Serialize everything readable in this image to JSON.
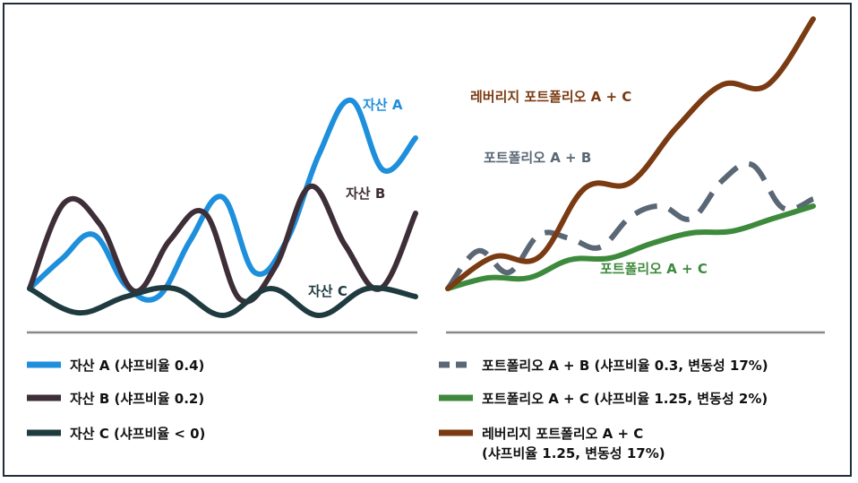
{
  "colors": {
    "asset_a": "#1e8fdc",
    "asset_b": "#3e2e38",
    "asset_c": "#1f3b40",
    "portfolio_ab": "#5a6775",
    "portfolio_ac": "#3d8a3d",
    "leveraged_ac": "#7a3a12",
    "baseline": "#888888",
    "frame": "#1f2d3d"
  },
  "chart_data": [
    {
      "type": "line",
      "title": "",
      "grid": false,
      "series": [
        {
          "name": "자산 A",
          "key": "a",
          "color_key": "asset_a",
          "dashed": false,
          "values": [
            0.0,
            0.55,
            1.0,
            0.05,
            -0.15,
            0.9,
            1.7,
            0.3,
            0.9,
            2.5,
            3.5,
            2.2,
            2.8
          ]
        },
        {
          "name": "자산 B",
          "key": "b",
          "color_key": "asset_b",
          "dashed": false,
          "values": [
            0.0,
            1.6,
            1.2,
            -0.05,
            0.9,
            1.4,
            -0.2,
            0.4,
            1.9,
            0.8,
            0.0,
            1.4
          ]
        },
        {
          "name": "자산 C",
          "key": "c",
          "color_key": "asset_c",
          "dashed": false,
          "values": [
            0.0,
            -0.45,
            -0.15,
            0.0,
            -0.5,
            0.0,
            -0.5,
            0.0,
            -0.15
          ]
        }
      ]
    },
    {
      "type": "line",
      "title": "",
      "grid": false,
      "series": [
        {
          "name": "포트폴리오 A + B",
          "key": "ab",
          "color_key": "portfolio_ab",
          "dashed": true,
          "values": [
            0.0,
            1.05,
            0.45,
            1.5,
            1.4,
            1.15,
            2.0,
            2.3,
            1.95,
            3.0,
            3.45,
            2.25,
            2.5
          ]
        },
        {
          "name": "포트폴리오 A + C",
          "key": "ac",
          "color_key": "portfolio_ac",
          "dashed": false,
          "values": [
            0.0,
            0.3,
            0.3,
            0.8,
            0.85,
            1.25,
            1.55,
            1.6,
            1.95,
            2.3
          ]
        },
        {
          "name": "레버리지 포트폴리오 A + C",
          "key": "lev",
          "color_key": "leveraged_ac",
          "dashed": false,
          "values": [
            0.0,
            0.55,
            0.55,
            1.75,
            1.85,
            2.8,
            3.55,
            3.55,
            4.7
          ]
        }
      ]
    }
  ],
  "labels": {
    "asset_a": "자산 A",
    "asset_b": "자산 B",
    "asset_c": "자산 C",
    "portfolio_ab": "포트폴리오 A + B",
    "portfolio_ac": "포트폴리오 A + C",
    "leveraged_ac": "레버리지 포트폴리오 A + C"
  },
  "legend_left": [
    {
      "color_key": "asset_a",
      "dashed": false,
      "text": "자산 A (샤프비율 0.4)"
    },
    {
      "color_key": "asset_b",
      "dashed": false,
      "text": "자산 B (샤프비율 0.2)"
    },
    {
      "color_key": "asset_c",
      "dashed": false,
      "text": "자산 C (샤프비율 < 0)"
    }
  ],
  "legend_right": [
    {
      "color_key": "portfolio_ab",
      "dashed": true,
      "text": "포트폴리오 A + B (샤프비율 0.3, 변동성 17%)"
    },
    {
      "color_key": "portfolio_ac",
      "dashed": false,
      "text": "포트폴리오 A + C (샤프비율 1.25, 변동성 2%)"
    },
    {
      "color_key": "leveraged_ac",
      "dashed": false,
      "text": "레버리지 포트폴리오 A + C",
      "text2": "(샤프비율 1.25, 변동성 17%)"
    }
  ]
}
